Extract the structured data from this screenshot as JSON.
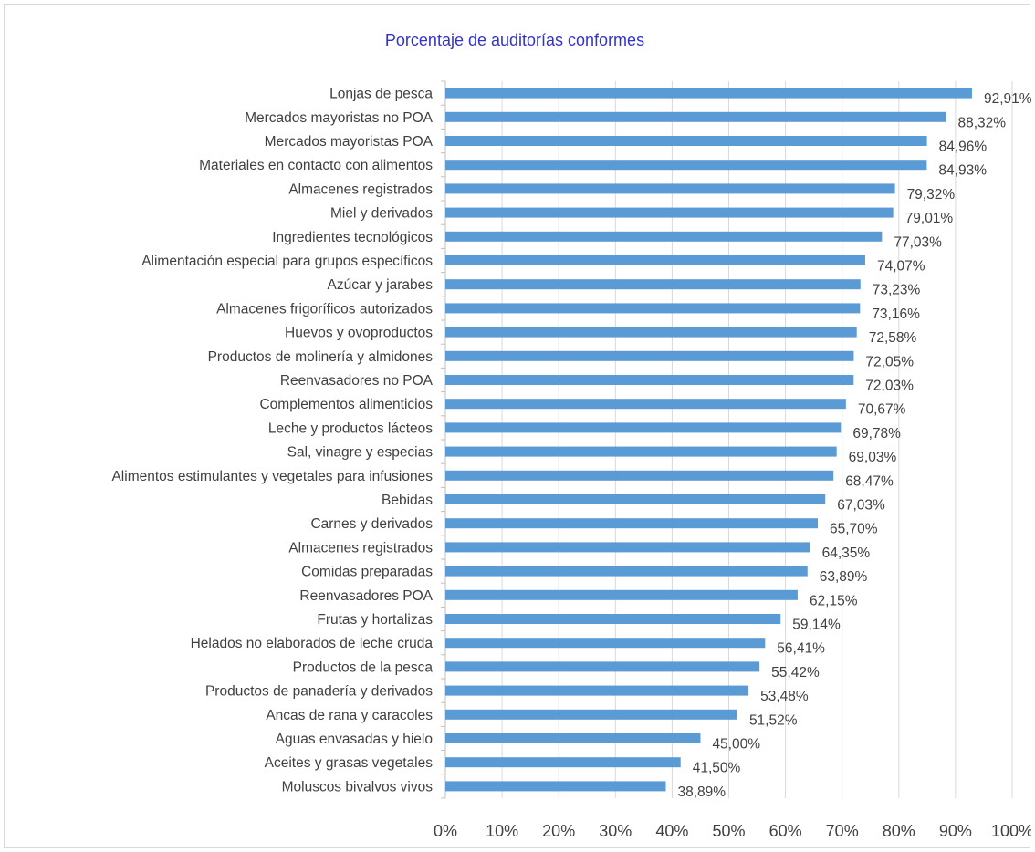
{
  "chart_data": {
    "type": "bar",
    "orientation": "horizontal",
    "title": "Porcentaje de auditorías conformes",
    "xlabel": "",
    "ylabel": "",
    "xlim": [
      0,
      100
    ],
    "x_ticks": [
      "0%",
      "10%",
      "20%",
      "30%",
      "40%",
      "50%",
      "60%",
      "70%",
      "80%",
      "90%",
      "100%"
    ],
    "grid": "vertical",
    "legend": "none",
    "bar_color": "#5b9bd5",
    "categories": [
      "Lonjas de pesca",
      "Mercados mayoristas no POA",
      "Mercados mayoristas POA",
      "Materiales en contacto con alimentos",
      "Almacenes registrados",
      "Miel y derivados",
      "Ingredientes tecnológicos",
      "Alimentación especial para grupos específicos",
      "Azúcar y jarabes",
      "Almacenes frigoríficos autorizados",
      "Huevos y ovoproductos",
      "Productos de molinería y almidones",
      "Reenvasadores no POA",
      "Complementos alimenticios",
      "Leche y productos lácteos",
      "Sal, vinagre y especias",
      "Alimentos estimulantes y vegetales para infusiones",
      "Bebidas",
      "Carnes y derivados",
      "Almacenes registrados",
      "Comidas preparadas",
      "Reenvasadores POA",
      "Frutas y hortalizas",
      "Helados no elaborados de leche cruda",
      "Productos de la pesca",
      "Productos de panadería y derivados",
      "Ancas de rana y caracoles",
      "Aguas envasadas y hielo",
      "Aceites y grasas vegetales",
      "Moluscos bivalvos vivos"
    ],
    "values": [
      92.91,
      88.32,
      84.96,
      84.93,
      79.32,
      79.01,
      77.03,
      74.07,
      73.23,
      73.16,
      72.58,
      72.05,
      72.03,
      70.67,
      69.78,
      69.03,
      68.47,
      67.03,
      65.7,
      64.35,
      63.89,
      62.15,
      59.14,
      56.41,
      55.42,
      53.48,
      51.52,
      45.0,
      41.5,
      38.89
    ],
    "value_labels": [
      "92,91%",
      "88,32%",
      "84,96%",
      "84,93%",
      "79,32%",
      "79,01%",
      "77,03%",
      "74,07%",
      "73,23%",
      "73,16%",
      "72,58%",
      "72,05%",
      "72,03%",
      "70,67%",
      "69,78%",
      "69,03%",
      "68,47%",
      "67,03%",
      "65,70%",
      "64,35%",
      "63,89%",
      "62,15%",
      "59,14%",
      "56,41%",
      "55,42%",
      "53,48%",
      "51,52%",
      "45,00%",
      "41,50%",
      "38,89%"
    ]
  }
}
